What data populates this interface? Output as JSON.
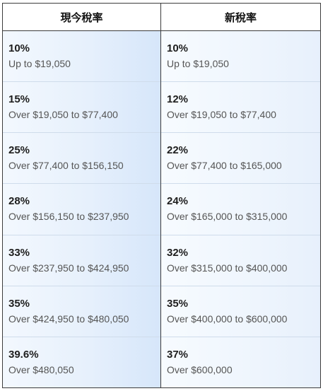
{
  "headers": {
    "current": "現今稅率",
    "new": "新稅率"
  },
  "current_brackets": [
    {
      "rate": "10%",
      "range": "Up to $19,050"
    },
    {
      "rate": "15%",
      "range": "Over $19,050 to $77,400"
    },
    {
      "rate": "25%",
      "range": "Over $77,400 to $156,150"
    },
    {
      "rate": "28%",
      "range": "Over $156,150 to $237,950"
    },
    {
      "rate": "33%",
      "range": "Over $237,950 to $424,950"
    },
    {
      "rate": "35%",
      "range": "Over $424,950 to $480,050"
    },
    {
      "rate": "39.6%",
      "range": "Over $480,050"
    }
  ],
  "new_brackets": [
    {
      "rate": "10%",
      "range": "Up to $19,050"
    },
    {
      "rate": "12%",
      "range": "Over $19,050 to $77,400"
    },
    {
      "rate": "22%",
      "range": "Over $77,400 to $165,000"
    },
    {
      "rate": "24%",
      "range": "Over $165,000 to $315,000"
    },
    {
      "rate": "32%",
      "range": "Over $315,000 to $400,000"
    },
    {
      "rate": "35%",
      "range": "Over $400,000 to $600,000"
    },
    {
      "rate": "37%",
      "range": "Over $600,000"
    }
  ]
}
